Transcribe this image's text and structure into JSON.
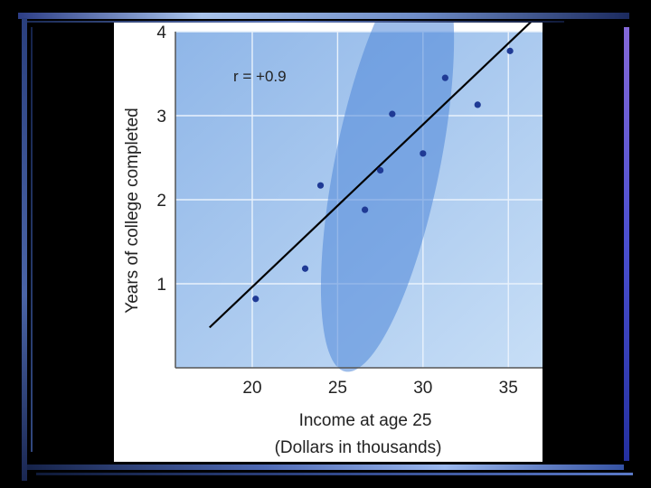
{
  "chart_data": {
    "type": "scatter",
    "title": "",
    "xlabel": "Income at age 25",
    "xlabel_line2": "(Dollars in thousands)",
    "ylabel": "Years of college completed",
    "xlim": [
      15.5,
      37
    ],
    "ylim": [
      0,
      4
    ],
    "x_ticks": [
      20,
      25,
      30,
      35
    ],
    "y_ticks": [
      1,
      2,
      3,
      4
    ],
    "grid": true,
    "annotation": "r = +0.9",
    "points": [
      {
        "x": 20.2,
        "y": 0.82
      },
      {
        "x": 23.1,
        "y": 1.18
      },
      {
        "x": 24.0,
        "y": 2.17
      },
      {
        "x": 26.6,
        "y": 1.88
      },
      {
        "x": 27.5,
        "y": 2.35
      },
      {
        "x": 28.2,
        "y": 3.02
      },
      {
        "x": 30.0,
        "y": 2.55
      },
      {
        "x": 31.3,
        "y": 3.45
      },
      {
        "x": 33.2,
        "y": 3.13
      },
      {
        "x": 35.1,
        "y": 3.77
      }
    ],
    "regression_line": {
      "x": [
        17.5,
        36.5
      ],
      "y": [
        0.48,
        4.15
      ]
    },
    "colors": {
      "plot_background": "#7aa8e2",
      "plot_background_light": "#c2dbf6",
      "ellipse": "#4f86d9",
      "grid": "#e9f2fc",
      "points": "#1f3a95",
      "line": "#000000",
      "frame_background": "#000000"
    }
  }
}
